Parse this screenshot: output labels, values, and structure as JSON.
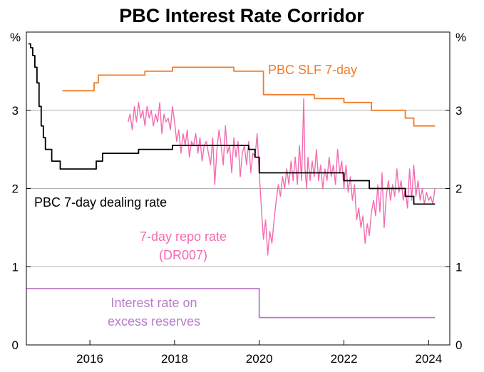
{
  "chart_data": {
    "type": "line",
    "title": "PBC Interest Rate Corridor",
    "y_unit_left": "%",
    "y_unit_right": "%",
    "xlim": [
      2014.5,
      2024.5
    ],
    "ylim": [
      0,
      4
    ],
    "x_ticks": [
      2016,
      2018,
      2020,
      2022,
      2024
    ],
    "x_tick_labels": [
      "2016",
      "2018",
      "2020",
      "2022",
      "2024"
    ],
    "y_ticks": [
      0,
      1,
      2,
      3
    ],
    "y_tick_labels": [
      "0",
      "1",
      "2",
      "3"
    ],
    "grid": true,
    "colors": {
      "slf": "#f07c2a",
      "dealing": "#000000",
      "repo": "#f36cb0",
      "ioer": "#b97bc9",
      "grid": "#b0b0b0"
    },
    "series": [
      {
        "name": "PBC SLF 7-day",
        "color": "#f07c2a",
        "step": true,
        "points": [
          [
            2015.35,
            3.25
          ],
          [
            2016.05,
            3.25
          ],
          [
            2016.1,
            3.35
          ],
          [
            2016.2,
            3.45
          ],
          [
            2017.1,
            3.45
          ],
          [
            2017.3,
            3.5
          ],
          [
            2017.95,
            3.55
          ],
          [
            2019.3,
            3.55
          ],
          [
            2019.4,
            3.5
          ],
          [
            2019.8,
            3.5
          ],
          [
            2020.0,
            3.5
          ],
          [
            2020.1,
            3.2
          ],
          [
            2020.2,
            3.2
          ],
          [
            2021.2,
            3.2
          ],
          [
            2021.3,
            3.15
          ],
          [
            2021.95,
            3.15
          ],
          [
            2022.0,
            3.1
          ],
          [
            2022.55,
            3.1
          ],
          [
            2022.65,
            3.0
          ],
          [
            2023.4,
            3.0
          ],
          [
            2023.45,
            2.9
          ],
          [
            2023.6,
            2.9
          ],
          [
            2023.65,
            2.8
          ],
          [
            2024.15,
            2.8
          ]
        ]
      },
      {
        "name": "PBC 7-day dealing rate",
        "color": "#000000",
        "step": true,
        "points": [
          [
            2014.55,
            3.85
          ],
          [
            2014.6,
            3.8
          ],
          [
            2014.65,
            3.7
          ],
          [
            2014.7,
            3.55
          ],
          [
            2014.75,
            3.35
          ],
          [
            2014.8,
            3.05
          ],
          [
            2014.85,
            2.8
          ],
          [
            2014.9,
            2.65
          ],
          [
            2014.95,
            2.5
          ],
          [
            2015.05,
            2.5
          ],
          [
            2015.1,
            2.35
          ],
          [
            2015.25,
            2.35
          ],
          [
            2015.3,
            2.25
          ],
          [
            2016.1,
            2.25
          ],
          [
            2016.15,
            2.35
          ],
          [
            2016.25,
            2.35
          ],
          [
            2016.3,
            2.45
          ],
          [
            2016.9,
            2.45
          ],
          [
            2016.95,
            2.45
          ],
          [
            2017.1,
            2.45
          ],
          [
            2017.15,
            2.5
          ],
          [
            2017.9,
            2.5
          ],
          [
            2017.95,
            2.55
          ],
          [
            2019.3,
            2.55
          ],
          [
            2019.7,
            2.55
          ],
          [
            2019.75,
            2.5
          ],
          [
            2019.9,
            2.4
          ],
          [
            2020.0,
            2.2
          ],
          [
            2020.95,
            2.2
          ],
          [
            2021.0,
            2.2
          ],
          [
            2021.95,
            2.2
          ],
          [
            2022.0,
            2.1
          ],
          [
            2022.5,
            2.1
          ],
          [
            2022.6,
            2.0
          ],
          [
            2023.4,
            2.0
          ],
          [
            2023.45,
            1.9
          ],
          [
            2023.6,
            1.9
          ],
          [
            2023.65,
            1.8
          ],
          [
            2024.15,
            1.8
          ]
        ]
      },
      {
        "name": "7-day repo rate",
        "name_line2": "(DR007)",
        "color": "#f36cb0",
        "step": false,
        "points": [
          [
            2016.9,
            2.85
          ],
          [
            2016.95,
            2.95
          ],
          [
            2017.0,
            2.75
          ],
          [
            2017.05,
            3.05
          ],
          [
            2017.1,
            2.85
          ],
          [
            2017.15,
            3.1
          ],
          [
            2017.2,
            2.9
          ],
          [
            2017.25,
            3.0
          ],
          [
            2017.3,
            2.8
          ],
          [
            2017.35,
            3.05
          ],
          [
            2017.4,
            2.9
          ],
          [
            2017.45,
            3.0
          ],
          [
            2017.5,
            2.8
          ],
          [
            2017.55,
            2.95
          ],
          [
            2017.6,
            2.85
          ],
          [
            2017.65,
            3.1
          ],
          [
            2017.7,
            2.7
          ],
          [
            2017.75,
            2.95
          ],
          [
            2017.8,
            2.85
          ],
          [
            2017.85,
            2.9
          ],
          [
            2017.9,
            2.75
          ],
          [
            2017.95,
            3.05
          ],
          [
            2018.0,
            2.85
          ],
          [
            2018.05,
            2.6
          ],
          [
            2018.1,
            2.75
          ],
          [
            2018.15,
            2.45
          ],
          [
            2018.2,
            2.7
          ],
          [
            2018.25,
            2.55
          ],
          [
            2018.3,
            2.75
          ],
          [
            2018.35,
            2.4
          ],
          [
            2018.4,
            2.6
          ],
          [
            2018.45,
            2.55
          ],
          [
            2018.5,
            2.7
          ],
          [
            2018.55,
            2.45
          ],
          [
            2018.6,
            2.65
          ],
          [
            2018.65,
            2.35
          ],
          [
            2018.7,
            2.55
          ],
          [
            2018.75,
            2.6
          ],
          [
            2018.8,
            2.45
          ],
          [
            2018.85,
            2.3
          ],
          [
            2018.9,
            2.65
          ],
          [
            2018.95,
            2.05
          ],
          [
            2019.0,
            2.5
          ],
          [
            2019.05,
            2.75
          ],
          [
            2019.1,
            2.55
          ],
          [
            2019.15,
            2.3
          ],
          [
            2019.2,
            2.8
          ],
          [
            2019.25,
            2.45
          ],
          [
            2019.3,
            2.55
          ],
          [
            2019.35,
            2.2
          ],
          [
            2019.4,
            2.65
          ],
          [
            2019.45,
            2.4
          ],
          [
            2019.5,
            2.6
          ],
          [
            2019.55,
            2.15
          ],
          [
            2019.6,
            2.45
          ],
          [
            2019.65,
            2.55
          ],
          [
            2019.7,
            2.3
          ],
          [
            2019.75,
            2.6
          ],
          [
            2019.8,
            2.2
          ],
          [
            2019.85,
            2.45
          ],
          [
            2019.9,
            2.4
          ],
          [
            2019.95,
            2.7
          ],
          [
            2020.0,
            2.2
          ],
          [
            2020.05,
            1.75
          ],
          [
            2020.1,
            1.35
          ],
          [
            2020.15,
            1.6
          ],
          [
            2020.2,
            1.15
          ],
          [
            2020.25,
            1.45
          ],
          [
            2020.3,
            1.3
          ],
          [
            2020.35,
            1.6
          ],
          [
            2020.4,
            1.85
          ],
          [
            2020.45,
            2.05
          ],
          [
            2020.5,
            1.9
          ],
          [
            2020.55,
            2.15
          ],
          [
            2020.6,
            2.0
          ],
          [
            2020.65,
            2.25
          ],
          [
            2020.7,
            2.05
          ],
          [
            2020.75,
            2.35
          ],
          [
            2020.8,
            2.1
          ],
          [
            2020.85,
            2.4
          ],
          [
            2020.9,
            2.05
          ],
          [
            2020.95,
            2.55
          ],
          [
            2021.0,
            2.1
          ],
          [
            2021.05,
            3.15
          ],
          [
            2021.08,
            2.25
          ],
          [
            2021.12,
            2.0
          ],
          [
            2021.15,
            2.4
          ],
          [
            2021.2,
            2.1
          ],
          [
            2021.25,
            2.35
          ],
          [
            2021.3,
            2.15
          ],
          [
            2021.35,
            2.5
          ],
          [
            2021.4,
            2.1
          ],
          [
            2021.45,
            2.3
          ],
          [
            2021.5,
            2.0
          ],
          [
            2021.55,
            2.25
          ],
          [
            2021.6,
            2.1
          ],
          [
            2021.65,
            2.4
          ],
          [
            2021.7,
            2.15
          ],
          [
            2021.75,
            2.3
          ],
          [
            2021.8,
            2.05
          ],
          [
            2021.85,
            2.5
          ],
          [
            2021.9,
            2.2
          ],
          [
            2021.95,
            2.35
          ],
          [
            2022.0,
            2.0
          ],
          [
            2022.05,
            2.3
          ],
          [
            2022.1,
            1.95
          ],
          [
            2022.15,
            2.15
          ],
          [
            2022.2,
            1.85
          ],
          [
            2022.25,
            2.05
          ],
          [
            2022.3,
            1.6
          ],
          [
            2022.35,
            1.75
          ],
          [
            2022.4,
            1.5
          ],
          [
            2022.45,
            1.65
          ],
          [
            2022.5,
            1.3
          ],
          [
            2022.55,
            1.55
          ],
          [
            2022.6,
            1.4
          ],
          [
            2022.65,
            1.7
          ],
          [
            2022.7,
            1.85
          ],
          [
            2022.75,
            1.65
          ],
          [
            2022.8,
            2.05
          ],
          [
            2022.85,
            1.7
          ],
          [
            2022.9,
            2.2
          ],
          [
            2022.95,
            1.5
          ],
          [
            2023.0,
            1.9
          ],
          [
            2023.05,
            2.1
          ],
          [
            2023.1,
            1.85
          ],
          [
            2023.15,
            2.05
          ],
          [
            2023.2,
            1.9
          ],
          [
            2023.25,
            2.25
          ],
          [
            2023.3,
            1.95
          ],
          [
            2023.35,
            2.1
          ],
          [
            2023.4,
            1.85
          ],
          [
            2023.45,
            2.0
          ],
          [
            2023.5,
            1.75
          ],
          [
            2023.55,
            2.25
          ],
          [
            2023.6,
            1.85
          ],
          [
            2023.65,
            2.3
          ],
          [
            2023.7,
            1.9
          ],
          [
            2023.75,
            2.1
          ],
          [
            2023.8,
            1.85
          ],
          [
            2023.85,
            2.0
          ],
          [
            2023.9,
            1.8
          ],
          [
            2023.95,
            1.95
          ],
          [
            2024.0,
            1.85
          ],
          [
            2024.05,
            1.9
          ],
          [
            2024.1,
            1.8
          ],
          [
            2024.15,
            2.0
          ]
        ]
      },
      {
        "name": "Interest rate on",
        "name_line2": "excess reserves",
        "color": "#b97bc9",
        "step": true,
        "points": [
          [
            2014.5,
            0.72
          ],
          [
            2019.95,
            0.72
          ],
          [
            2020.0,
            0.35
          ],
          [
            2024.15,
            0.35
          ]
        ]
      }
    ]
  }
}
